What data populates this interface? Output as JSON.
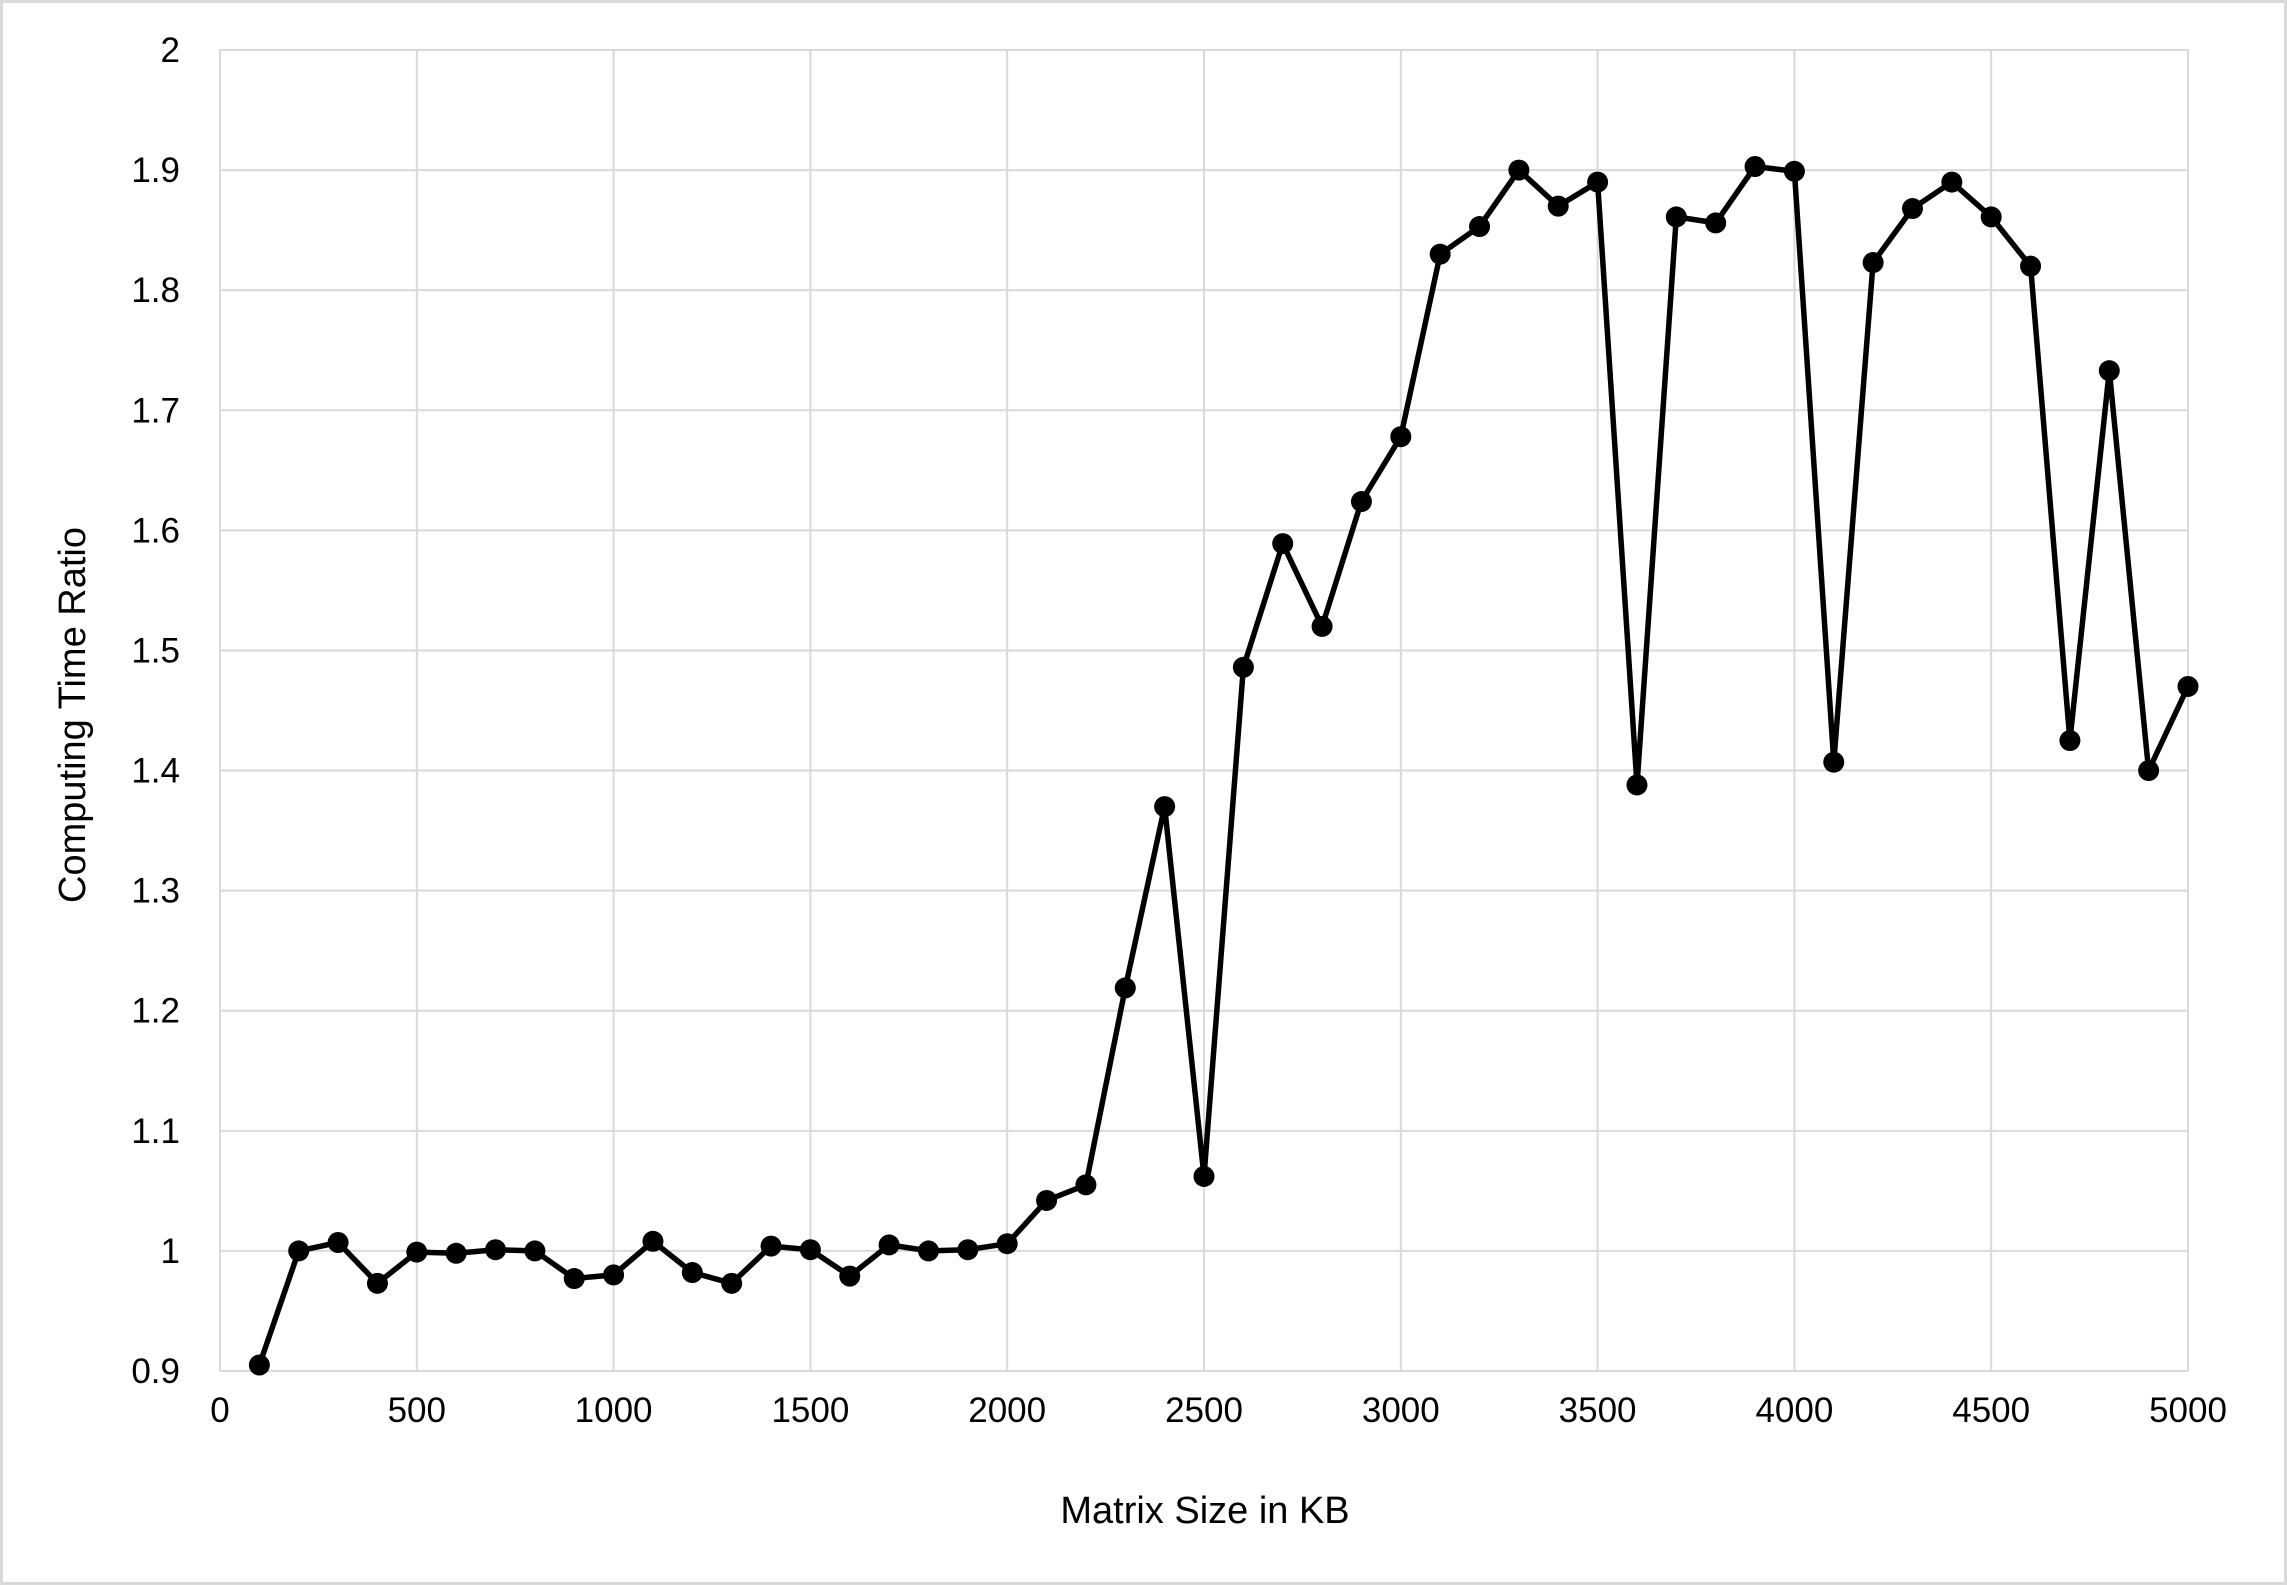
{
  "chart_data": {
    "type": "line",
    "title": "",
    "xlabel": "Matrix Size in KB",
    "ylabel": "Computing Time Ratio",
    "xlim": [
      0,
      5000
    ],
    "ylim": [
      0.9,
      2
    ],
    "x_ticks": [
      "0",
      "500",
      "1000",
      "1500",
      "2000",
      "2500",
      "3000",
      "3500",
      "4000",
      "4500",
      "5000"
    ],
    "y_ticks": [
      "0.9",
      "1",
      "1.1",
      "1.2",
      "1.3",
      "1.4",
      "1.5",
      "1.6",
      "1.7",
      "1.8",
      "1.9",
      "2"
    ],
    "grid": true,
    "legend": "none",
    "colors": {
      "series": "#000000",
      "grid": "#d9d9d9",
      "border": "#d9d9d9"
    },
    "series": [
      {
        "x": [
          100,
          200,
          300,
          400,
          500,
          600,
          700,
          800,
          900,
          1000,
          1100,
          1200,
          1300,
          1400,
          1500,
          1600,
          1700,
          1800,
          1900,
          2000,
          2100,
          2200,
          2300,
          2400,
          2500,
          2600,
          2700,
          2800,
          2900,
          3000,
          3100,
          3200,
          3300,
          3400,
          3500,
          3600,
          3700,
          3800,
          3900,
          4000,
          4100,
          4200,
          4300,
          4400,
          4500,
          4600,
          4700,
          4800,
          4900,
          5000
        ],
        "values": [
          0.905,
          1.0,
          1.007,
          0.973,
          0.999,
          0.998,
          1.001,
          1.0,
          0.977,
          0.98,
          1.008,
          0.982,
          0.973,
          1.004,
          1.001,
          0.979,
          1.005,
          1.0,
          1.001,
          1.006,
          1.042,
          1.055,
          1.219,
          1.37,
          1.062,
          1.486,
          1.589,
          1.52,
          1.624,
          1.678,
          1.83,
          1.853,
          1.9,
          1.87,
          1.89,
          1.388,
          1.861,
          1.856,
          1.903,
          1.899,
          1.407,
          1.823,
          1.868,
          1.89,
          1.861,
          1.82,
          1.425,
          1.733,
          1.4,
          1.47
        ]
      }
    ]
  }
}
